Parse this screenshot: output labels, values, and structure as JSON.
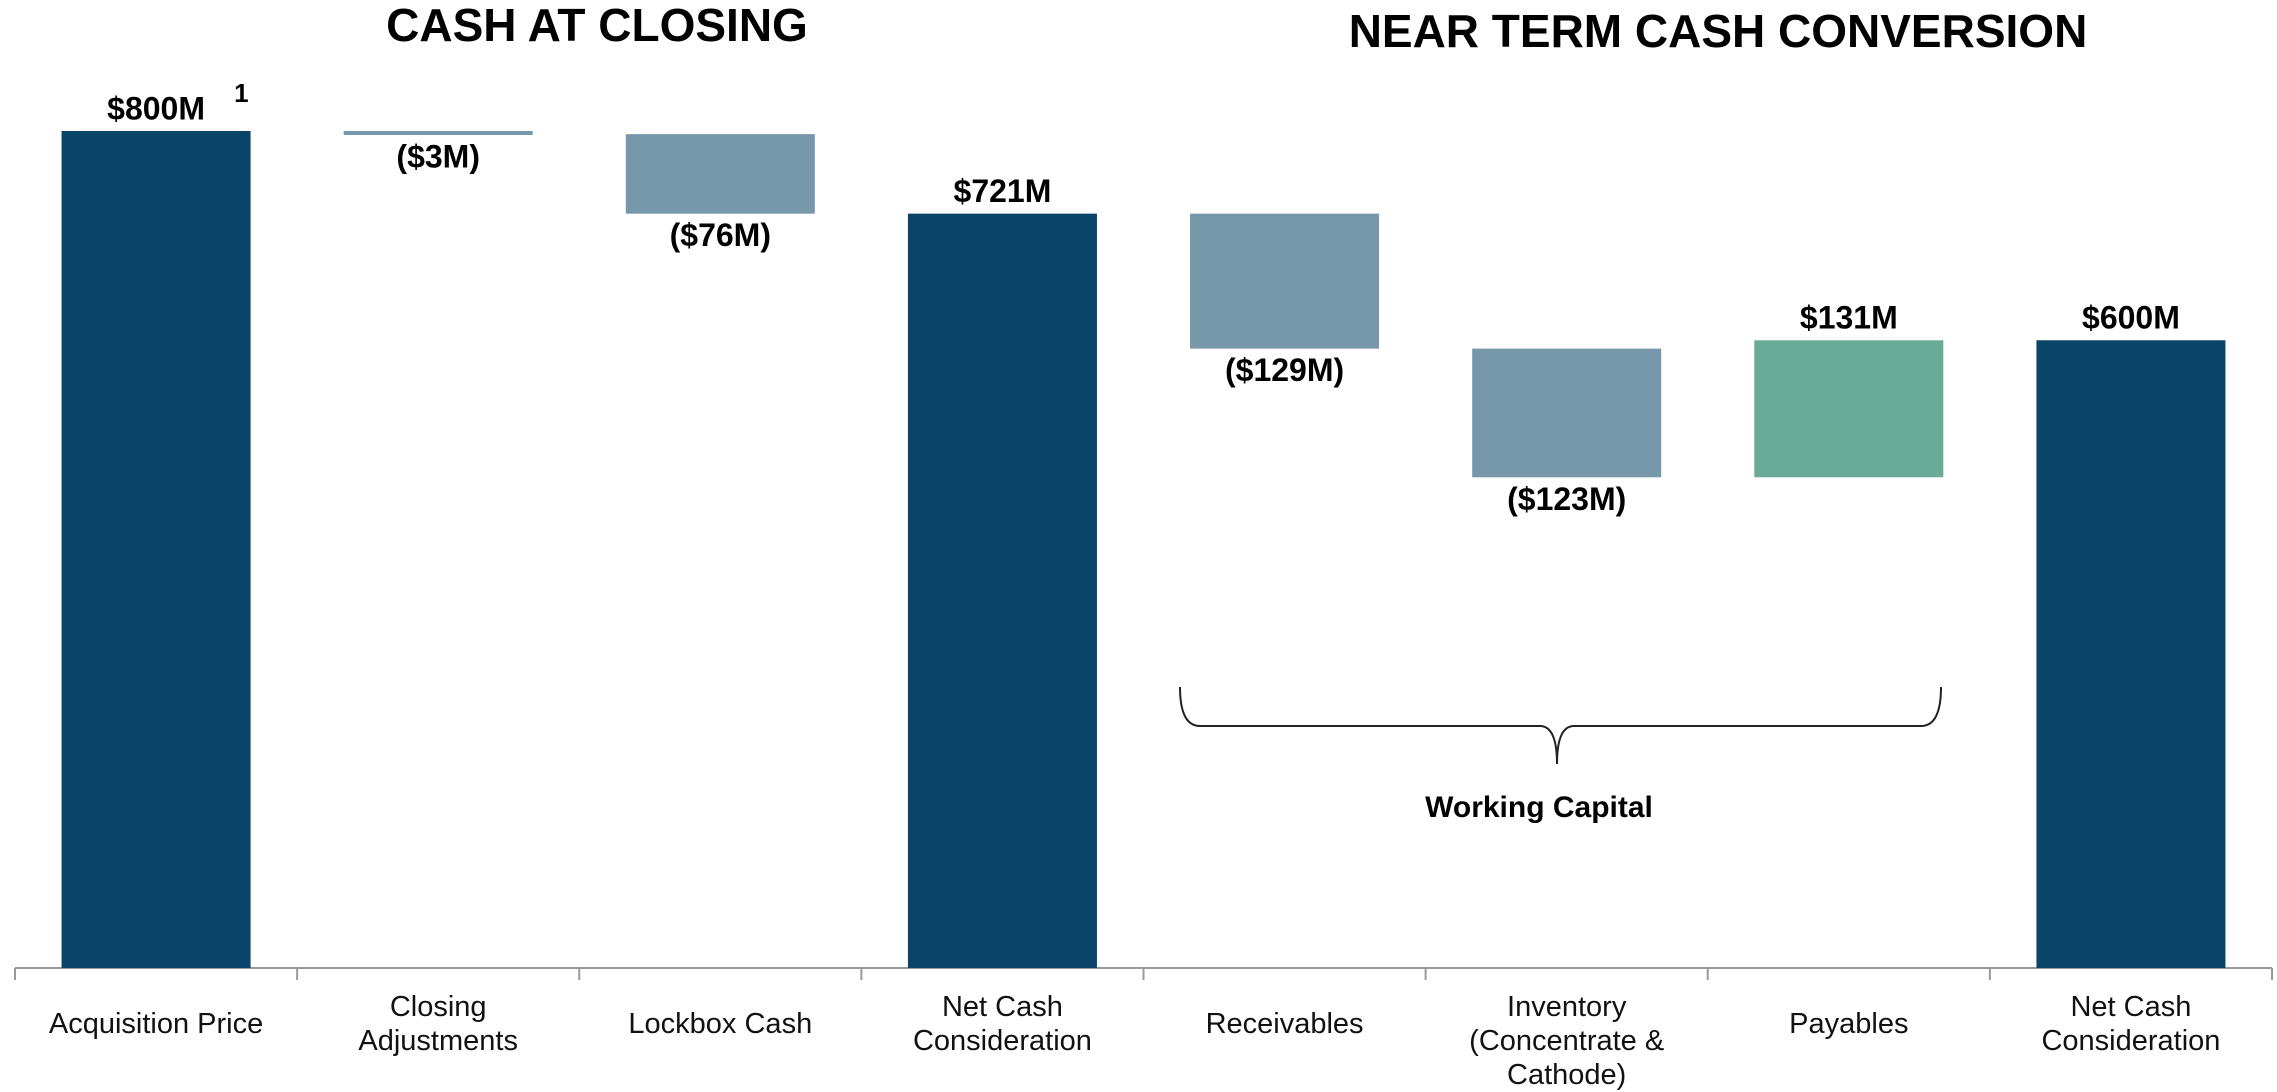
{
  "chart_data": {
    "type": "waterfall",
    "titles": [
      "CASH AT CLOSING",
      "NEAR TERM CASH CONVERSION"
    ],
    "categories": [
      "Acquisition Price",
      "Closing Adjustments",
      "Lockbox Cash",
      "Net Cash Consideration",
      "Receivables",
      "Inventory (Concentrate & Cathode)",
      "Payables",
      "Net Cash Consideration"
    ],
    "measures": [
      "total",
      "relative",
      "relative",
      "total",
      "relative",
      "relative",
      "relative",
      "total"
    ],
    "values": [
      800,
      -3,
      -76,
      721,
      -129,
      -123,
      131,
      600
    ],
    "value_labels": [
      "$800M",
      "($3M)",
      "($76M)",
      "$721M",
      "($129M)",
      "($123M)",
      "$131M",
      "$600M"
    ],
    "colors": {
      "total": "#0a4469",
      "decrease": "#7797ab",
      "increase": "#6aab97"
    },
    "annotations": [
      {
        "text": "1"
      },
      {
        "text": "Working Capital"
      }
    ]
  }
}
